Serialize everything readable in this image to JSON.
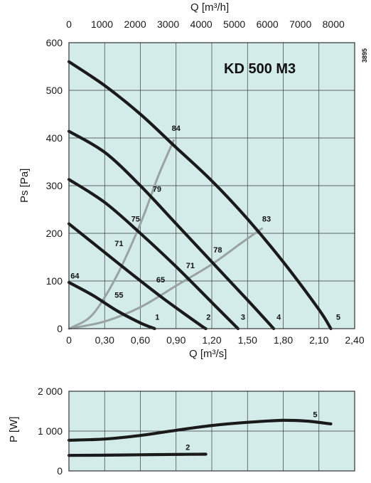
{
  "chart_data": [
    {
      "type": "line",
      "title": "KD 500 M3",
      "side_code": "3895",
      "xlabel": "Q [m³/s]",
      "ylabel": "Ps [Pa]",
      "x2label": "Q [m³/h]",
      "xlim": [
        0,
        2.4
      ],
      "ylim": [
        0,
        600
      ],
      "x2lim": [
        0,
        8640
      ],
      "xticks": [
        "0",
        "0,30",
        "0,60",
        "0,90",
        "1,20",
        "1,50",
        "1,80",
        "2,10",
        "2,40"
      ],
      "yticks": [
        "0",
        "100",
        "200",
        "300",
        "400",
        "500",
        "600"
      ],
      "x2ticks": [
        "0",
        "1000",
        "2000",
        "3000",
        "4000",
        "5000",
        "6000",
        "7000",
        "8000"
      ],
      "grid": true,
      "background_color": "#d3ece9",
      "curve_color": "#1a1a1a",
      "efficiency_color": "#9aa3a3",
      "series": [
        {
          "name": "1",
          "x": [
            0,
            0.2,
            0.4,
            0.6,
            0.72
          ],
          "y": [
            97,
            70,
            38,
            12,
            0
          ]
        },
        {
          "name": "2",
          "x": [
            0,
            0.2,
            0.5,
            0.8,
            1.1,
            1.15
          ],
          "y": [
            220,
            180,
            120,
            62,
            8,
            0
          ]
        },
        {
          "name": "3",
          "x": [
            0,
            0.3,
            0.6,
            0.9,
            1.2,
            1.42
          ],
          "y": [
            313,
            265,
            200,
            130,
            55,
            0
          ]
        },
        {
          "name": "4",
          "x": [
            0,
            0.3,
            0.6,
            0.9,
            1.2,
            1.5,
            1.72
          ],
          "y": [
            414,
            370,
            300,
            220,
            140,
            60,
            0
          ]
        },
        {
          "name": "5",
          "x": [
            0,
            0.3,
            0.6,
            0.9,
            1.2,
            1.5,
            1.8,
            2.1,
            2.2
          ],
          "y": [
            560,
            510,
            450,
            380,
            310,
            230,
            140,
            40,
            0
          ]
        }
      ],
      "efficiency_curves": [
        {
          "x": [
            0.02,
            0.2,
            0.4,
            0.6,
            0.75,
            0.88
          ],
          "y": [
            2,
            30,
            110,
            220,
            320,
            395
          ]
        },
        {
          "x": [
            0,
            0.3,
            0.6,
            0.9,
            1.2,
            1.45,
            1.62
          ],
          "y": [
            0,
            15,
            45,
            90,
            135,
            180,
            210
          ]
        }
      ],
      "curve_labels": [
        {
          "text": "1",
          "x": 0.7,
          "y": 25
        },
        {
          "text": "2",
          "x": 1.13,
          "y": 25
        },
        {
          "text": "3",
          "x": 1.42,
          "y": 25
        },
        {
          "text": "4",
          "x": 1.72,
          "y": 25
        },
        {
          "text": "5",
          "x": 2.22,
          "y": 25
        }
      ],
      "efficiency_labels": [
        {
          "text": "64",
          "x": 0.05,
          "y": 105
        },
        {
          "text": "55",
          "x": 0.42,
          "y": 65
        },
        {
          "text": "65",
          "x": 0.77,
          "y": 97
        },
        {
          "text": "71",
          "x": 0.42,
          "y": 173
        },
        {
          "text": "71",
          "x": 1.02,
          "y": 127
        },
        {
          "text": "75",
          "x": 0.56,
          "y": 225
        },
        {
          "text": "78",
          "x": 1.25,
          "y": 160
        },
        {
          "text": "79",
          "x": 0.74,
          "y": 287
        },
        {
          "text": "84",
          "x": 0.9,
          "y": 415
        },
        {
          "text": "83",
          "x": 1.66,
          "y": 225
        }
      ]
    },
    {
      "type": "line",
      "xlabel": "",
      "ylabel": "P [W]",
      "xlim": [
        0,
        2.4
      ],
      "ylim": [
        0,
        2000
      ],
      "yticks": [
        "0",
        "1 000",
        "2 000"
      ],
      "grid": true,
      "background_color": "#d3ece9",
      "curve_color": "#1a1a1a",
      "series": [
        {
          "name": "5",
          "x": [
            0,
            0.3,
            0.6,
            0.9,
            1.2,
            1.5,
            1.8,
            2.0,
            2.2
          ],
          "y": [
            770,
            800,
            890,
            1020,
            1140,
            1220,
            1270,
            1250,
            1180
          ]
        },
        {
          "name": "2",
          "x": [
            0,
            0.3,
            0.6,
            0.9,
            1.15
          ],
          "y": [
            390,
            395,
            405,
            415,
            420
          ]
        }
      ],
      "curve_labels": [
        {
          "text": "5",
          "x": 2.05,
          "y": 1420
        },
        {
          "text": "2",
          "x": 0.98,
          "y": 600
        }
      ]
    }
  ]
}
